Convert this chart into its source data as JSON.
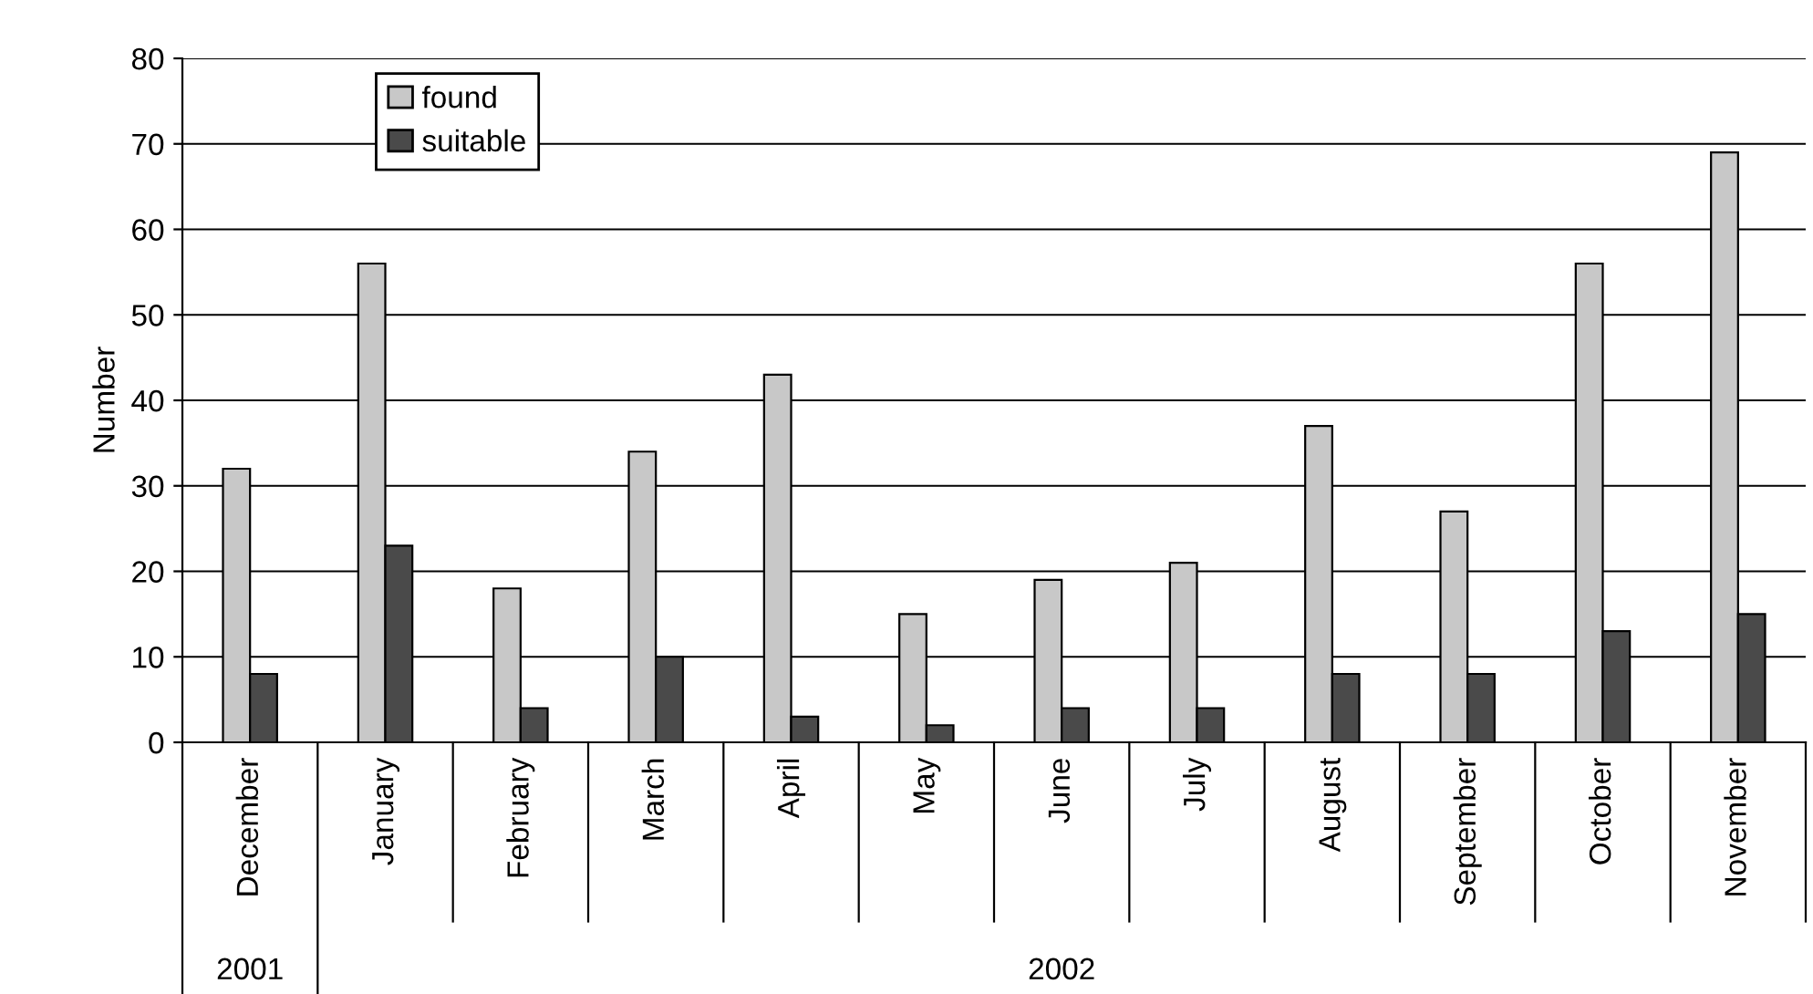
{
  "chart_data": {
    "type": "bar",
    "ylabel": "Number",
    "categories": [
      "December",
      "January",
      "February",
      "March",
      "April",
      "May",
      "June",
      "July",
      "August",
      "September",
      "October",
      "November"
    ],
    "series": [
      {
        "name": "found",
        "color": "#c8c8c8",
        "values": [
          32,
          56,
          18,
          34,
          43,
          15,
          19,
          21,
          37,
          27,
          56,
          69
        ]
      },
      {
        "name": "suitable",
        "color": "#4a4a4a",
        "values": [
          8,
          23,
          4,
          10,
          3,
          2,
          4,
          4,
          8,
          8,
          13,
          15
        ]
      }
    ],
    "ylim": [
      0,
      80
    ],
    "yticks": [
      0,
      10,
      20,
      30,
      40,
      50,
      60,
      70,
      80
    ],
    "grid": "y",
    "legend": "top left",
    "annotations": [
      "2001",
      "2002"
    ]
  }
}
